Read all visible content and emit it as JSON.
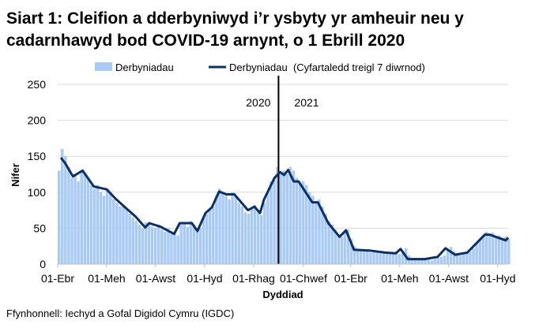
{
  "chart_data": {
    "type": "bar+line",
    "title_line1": "Siart 1: Cleifion a dderbyniwyd i’r ysbyty yr amheuir neu y",
    "title_line2": "cadarnhawyd bod COVID-19 arnynt, o 1 Ebrill 2020",
    "xlabel": "Dyddiad",
    "ylabel": "Nifer",
    "ylim": [
      0,
      250
    ],
    "yticks": [
      "0",
      "50",
      "100",
      "150",
      "200",
      "250"
    ],
    "xlim": [
      "2020-04-01",
      "2021-10-14"
    ],
    "xticks": [
      {
        "date": "2020-04-01",
        "label": "01-Ebr"
      },
      {
        "date": "2020-06-01",
        "label": "01-Meh"
      },
      {
        "date": "2020-08-01",
        "label": "01-Awst"
      },
      {
        "date": "2020-10-01",
        "label": "01-Hyd"
      },
      {
        "date": "2020-12-01",
        "label": "01-Rhag"
      },
      {
        "date": "2021-02-01",
        "label": "01-Chwef"
      },
      {
        "date": "2021-04-01",
        "label": "01-Ebr"
      },
      {
        "date": "2021-06-01",
        "label": "01-Meh"
      },
      {
        "date": "2021-08-01",
        "label": "01-Awst"
      },
      {
        "date": "2021-10-01",
        "label": "01-Hyd"
      }
    ],
    "grid": true,
    "legend_position": "top",
    "year_divider": {
      "date": "2021-01-01",
      "left_label": "2020",
      "right_label": "2021"
    },
    "colors": {
      "bars": "#a8caf4",
      "line": "#0c2f66",
      "grid": "#d9d9d9"
    },
    "series": [
      {
        "name": "Derbyniadau",
        "kind": "bar",
        "start": "2020-04-01",
        "step_days": 4,
        "values": [
          130,
          160,
          150,
          135,
          120,
          125,
          115,
          130,
          125,
          120,
          110,
          105,
          110,
          100,
          95,
          105,
          100,
          90,
          85,
          80,
          82,
          78,
          70,
          65,
          60,
          55,
          50,
          58,
          55,
          52,
          50,
          55,
          48,
          45,
          50,
          42,
          45,
          40,
          55,
          58,
          52,
          60,
          55,
          45,
          50,
          65,
          70,
          75,
          80,
          95,
          105,
          100,
          95,
          90,
          100,
          95,
          85,
          80,
          72,
          70,
          78,
          82,
          75,
          68,
          85,
          100,
          115,
          120,
          135,
          125,
          130,
          125,
          135,
          130,
          120,
          112,
          115,
          110,
          100,
          95,
          85,
          90,
          80,
          70,
          60,
          55,
          48,
          40,
          38,
          45,
          48,
          35,
          25,
          20,
          18,
          20,
          18,
          16,
          19,
          17,
          15,
          16,
          14,
          15,
          17,
          16,
          14,
          18,
          22,
          12,
          8,
          7,
          6,
          8,
          7,
          6,
          5,
          7,
          9,
          10,
          12,
          20,
          24,
          18,
          13,
          12,
          14,
          15,
          17,
          22,
          28,
          35,
          40,
          45,
          42,
          44,
          38,
          40,
          36,
          38,
          35
        ]
      },
      {
        "name": "Derbyniadau  (Cyfartaledd treigl 7 diwrnod)",
        "kind": "line",
        "points": [
          [
            "2020-04-05",
            148
          ],
          [
            "2020-04-10",
            141
          ],
          [
            "2020-04-20",
            122
          ],
          [
            "2020-05-02",
            130
          ],
          [
            "2020-05-16",
            108
          ],
          [
            "2020-06-01",
            104
          ],
          [
            "2020-06-12",
            91
          ],
          [
            "2020-06-24",
            79
          ],
          [
            "2020-07-07",
            66
          ],
          [
            "2020-07-19",
            51
          ],
          [
            "2020-07-24",
            57
          ],
          [
            "2020-08-07",
            52
          ],
          [
            "2020-08-24",
            42
          ],
          [
            "2020-08-31",
            57
          ],
          [
            "2020-09-15",
            57
          ],
          [
            "2020-09-22",
            46
          ],
          [
            "2020-10-02",
            71
          ],
          [
            "2020-10-10",
            79
          ],
          [
            "2020-10-19",
            101
          ],
          [
            "2020-10-28",
            97
          ],
          [
            "2020-11-07",
            97
          ],
          [
            "2020-11-24",
            75
          ],
          [
            "2020-12-02",
            80
          ],
          [
            "2020-12-09",
            71
          ],
          [
            "2020-12-14",
            90
          ],
          [
            "2020-12-27",
            120
          ],
          [
            "2021-01-03",
            128
          ],
          [
            "2021-01-08",
            124
          ],
          [
            "2021-01-13",
            131
          ],
          [
            "2021-01-20",
            115
          ],
          [
            "2021-01-26",
            115
          ],
          [
            "2021-02-12",
            86
          ],
          [
            "2021-02-19",
            86
          ],
          [
            "2021-03-04",
            57
          ],
          [
            "2021-03-18",
            38
          ],
          [
            "2021-03-26",
            47
          ],
          [
            "2021-04-05",
            20
          ],
          [
            "2021-04-24",
            19
          ],
          [
            "2021-05-14",
            16
          ],
          [
            "2021-05-27",
            15
          ],
          [
            "2021-06-02",
            21
          ],
          [
            "2021-06-11",
            7
          ],
          [
            "2021-07-02",
            7
          ],
          [
            "2021-07-18",
            10
          ],
          [
            "2021-07-28",
            22
          ],
          [
            "2021-08-09",
            13
          ],
          [
            "2021-08-24",
            16
          ],
          [
            "2021-09-15",
            41
          ],
          [
            "2021-09-21",
            41
          ],
          [
            "2021-10-01",
            37
          ],
          [
            "2021-10-11",
            33
          ],
          [
            "2021-10-14",
            37
          ]
        ]
      }
    ]
  },
  "source": "Ffynhonnell: Iechyd a Gofal Digidol Cymru (IGDC)"
}
